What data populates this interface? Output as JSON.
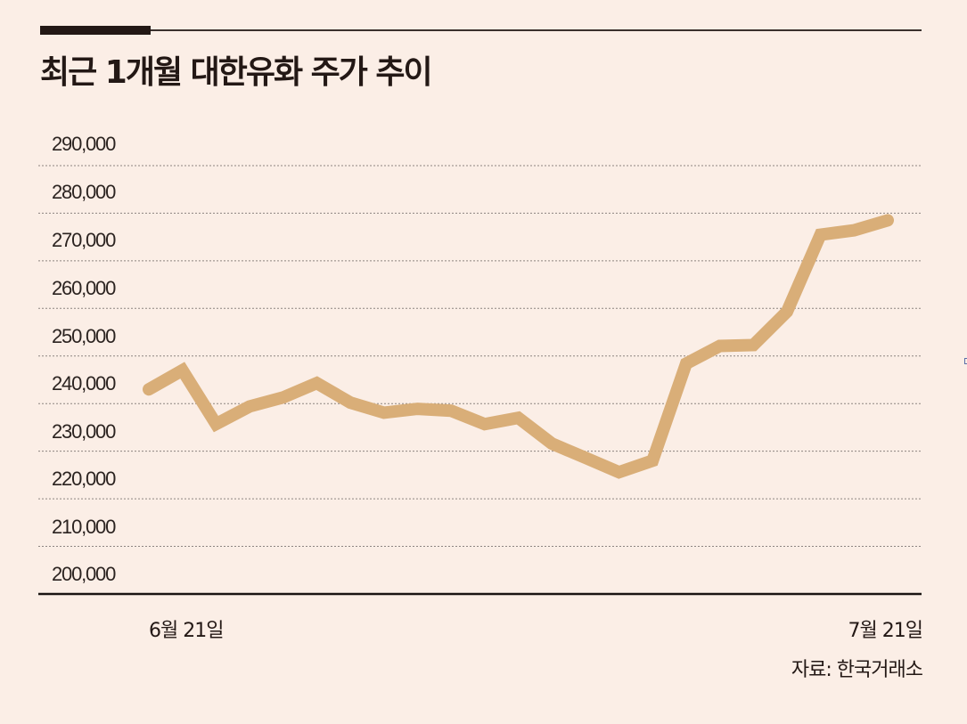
{
  "header": {
    "title": "최근 1개월 대한유화 주가 추이"
  },
  "axis": {
    "y_ticks": [
      "290,000",
      "280,000",
      "270,000",
      "260,000",
      "250,000",
      "240,000",
      "230,000",
      "220,000",
      "210,000",
      "200,000"
    ],
    "x_start": "6월 21일",
    "x_end": "7월 21일"
  },
  "footer": {
    "source": "자료: 한국거래소"
  },
  "colors": {
    "background": "#fbeee6",
    "line": "#d9ae78",
    "text": "#231815",
    "grid": "#8c8480"
  },
  "chart_data": {
    "type": "line",
    "title": "최근 1개월 대한유화 주가 추이",
    "xlabel": "",
    "ylabel": "",
    "ylim": [
      200000,
      290000
    ],
    "grid": true,
    "legend": null,
    "x_tick_labels": [
      "6월 21일",
      "7월 21일"
    ],
    "source": "자료: 한국거래소",
    "series": [
      {
        "name": "대한유화 주가",
        "values": [
          243000,
          247000,
          235700,
          239400,
          241300,
          244300,
          240200,
          238100,
          238900,
          238500,
          235700,
          237000,
          231600,
          228600,
          225600,
          228000,
          248400,
          252100,
          252300,
          259300,
          275500,
          276400,
          278500
        ]
      }
    ]
  }
}
